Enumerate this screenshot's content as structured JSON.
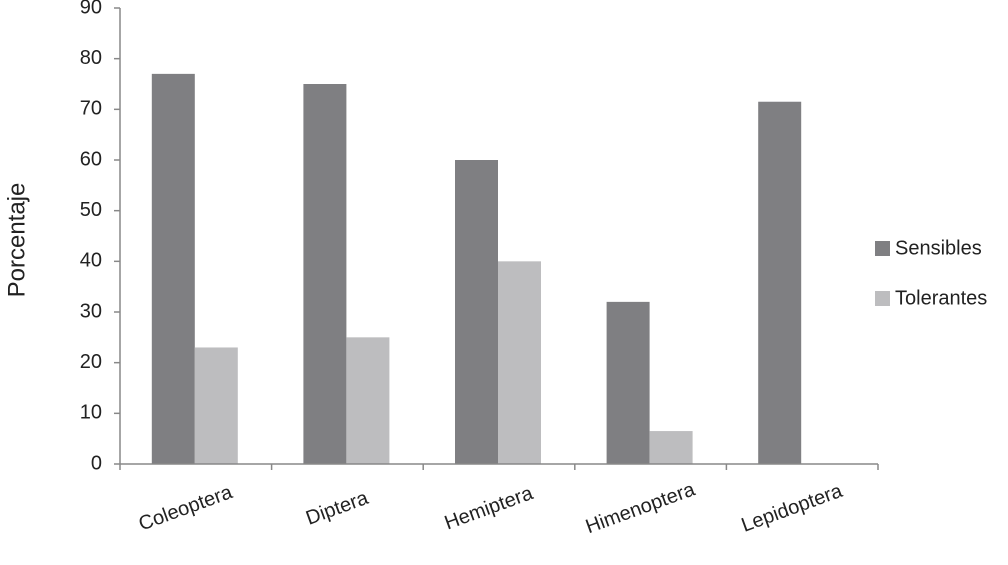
{
  "chart_data": {
    "type": "bar",
    "y_label": "Porcentaje",
    "categories": [
      "Coleoptera",
      "Diptera",
      "Hemiptera",
      "Himenoptera",
      "Lepidoptera"
    ],
    "series": [
      {
        "name": "Sensibles",
        "color": "#7f7f82",
        "values": [
          77,
          75,
          60,
          32,
          71.5
        ]
      },
      {
        "name": "Tolerantes",
        "color": "#bdbdbf",
        "values": [
          23,
          25,
          40,
          6.5,
          0
        ]
      }
    ],
    "ylim": [
      0,
      90
    ],
    "yticks": [
      0,
      10,
      20,
      30,
      40,
      50,
      60,
      70,
      80,
      90
    ],
    "legend": "right"
  }
}
